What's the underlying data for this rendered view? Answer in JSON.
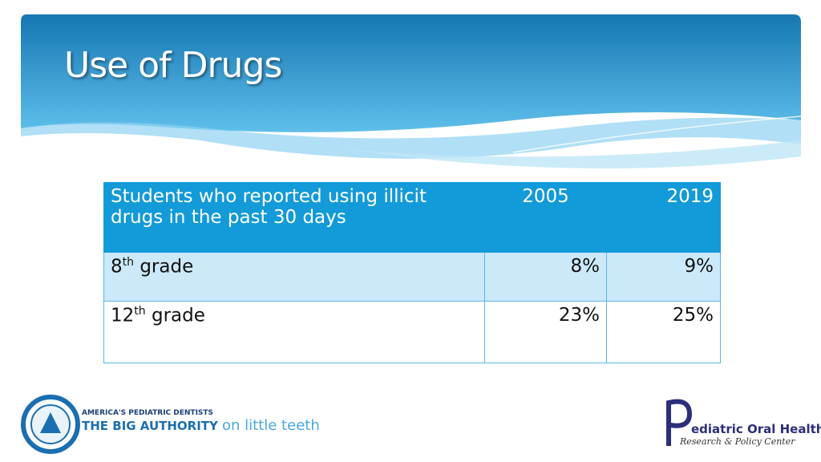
{
  "header": {
    "title": "Use of Drugs"
  },
  "table": {
    "header": [
      "Students who reported using illicit drugs in the past 30 days",
      "2005",
      "2019"
    ],
    "rows": [
      [
        {
          "base": "8",
          "sup": "th",
          "rest": " grade"
        },
        "8%",
        "9%"
      ],
      [
        {
          "base": "12",
          "sup": "th",
          "rest": " grade"
        },
        "23%",
        "25%"
      ]
    ]
  },
  "logos": {
    "left": {
      "line1": "AMERICA'S PEDIATRIC DENTISTS",
      "line2": "THE BIG AUTHORITY",
      "line3": "on little teeth"
    },
    "right": {
      "line1": "ediatric Oral Health",
      "line2": "Research & Policy Center"
    }
  }
}
